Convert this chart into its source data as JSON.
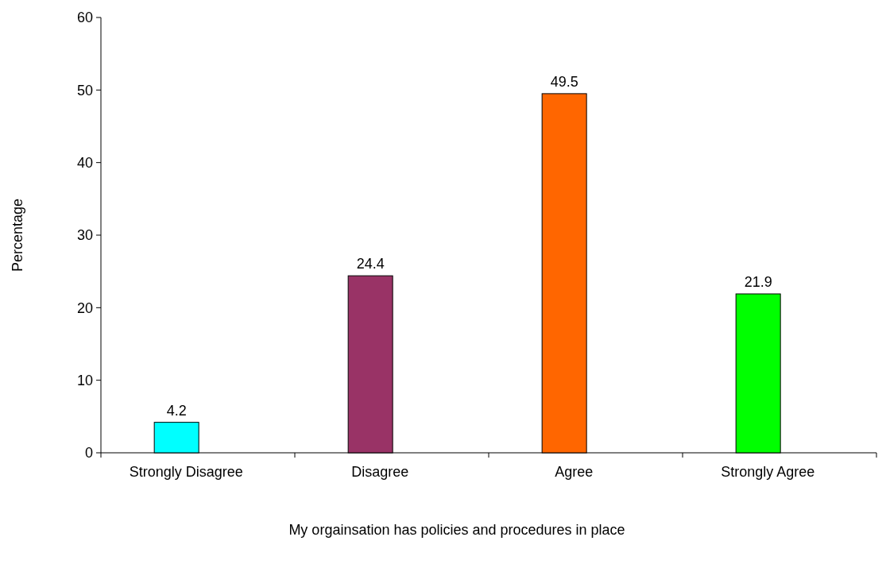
{
  "chart_data": {
    "type": "bar",
    "xlabel": "My orgainsation has policies and procedures in place",
    "ylabel": "Percentage",
    "categories": [
      "Strongly Disagree",
      "Disagree",
      "Agree",
      "Strongly Agree"
    ],
    "values": [
      4.2,
      24.4,
      49.5,
      21.9
    ],
    "colors": [
      "#00ffff",
      "#993366",
      "#ff6600",
      "#00ff00"
    ],
    "ylim": [
      0,
      60
    ],
    "yticks": [
      0,
      10,
      20,
      30,
      40,
      50,
      60
    ],
    "grid": false,
    "data_labels": true
  }
}
